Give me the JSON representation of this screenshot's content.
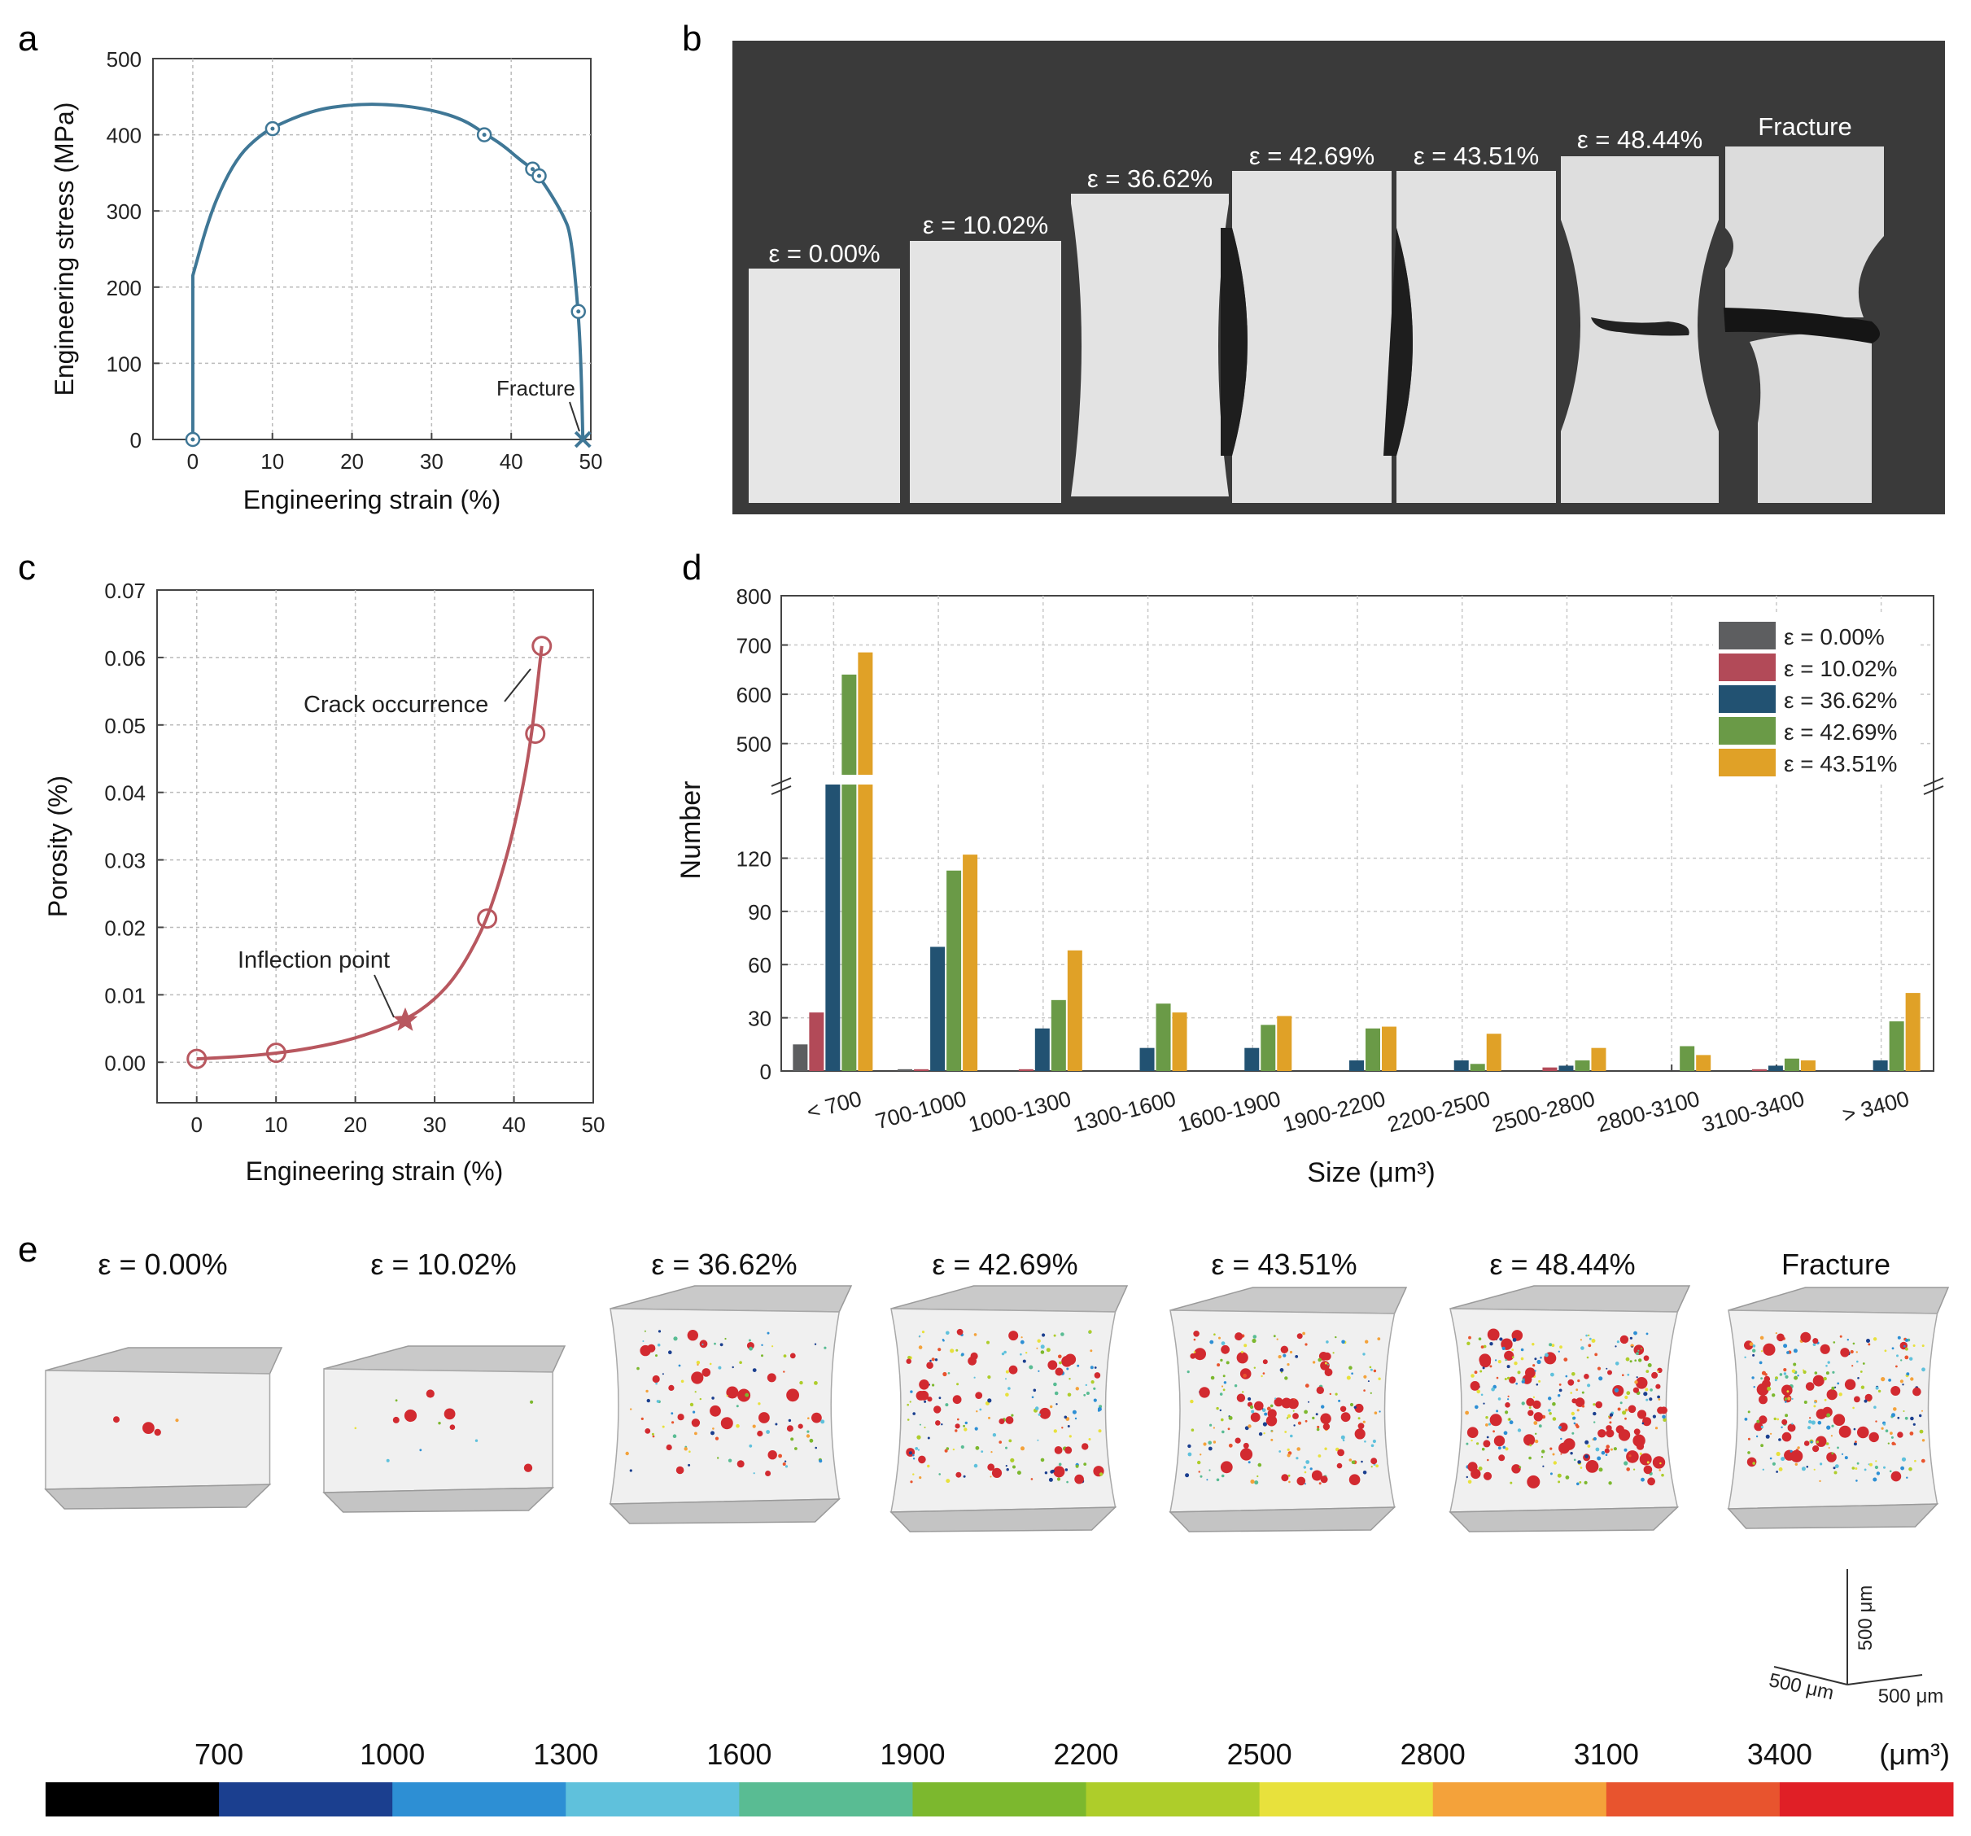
{
  "colors": {
    "stress": "#3f7796",
    "porosity": "#b8575f",
    "series": [
      "#5d5e60",
      "#b24a58",
      "#225272",
      "#6a9a47",
      "#e0a127"
    ],
    "colorbar": [
      "#000000",
      "#1b3f8f",
      "#2d8fd4",
      "#5fc1dc",
      "#59bc93",
      "#7cb82e",
      "#aecd2a",
      "#e8e13c",
      "#f4a23a",
      "#e8542e",
      "#e01f26"
    ]
  },
  "panels": {
    "a": "a",
    "b": "b",
    "c": "c",
    "d": "d",
    "e": "e"
  },
  "panel_b": {
    "labels": [
      "ε = 0.00%",
      "ε = 10.02%",
      "ε = 36.62%",
      "ε = 42.69%",
      "ε = 43.51%",
      "ε = 48.44%",
      "Fracture"
    ]
  },
  "panel_e": {
    "labels": [
      "ε = 0.00%",
      "ε = 10.02%",
      "ε = 36.62%",
      "ε = 42.69%",
      "ε = 43.51%",
      "ε = 48.44%",
      "Fracture"
    ],
    "scale": {
      "vertical": "500 μm",
      "left": "500 μm",
      "right": "500 μm"
    },
    "colorbar": {
      "ticks": [
        "700",
        "1000",
        "1300",
        "1600",
        "1900",
        "2200",
        "2500",
        "2800",
        "3100",
        "3400"
      ],
      "unit": "(μm³)"
    }
  },
  "chart_data": [
    {
      "id": "a",
      "type": "line",
      "xlabel": "Engineering strain (%)",
      "ylabel": "Engineering stress (MPa)",
      "xlim": [
        -5,
        50
      ],
      "ylim": [
        0,
        500
      ],
      "xticks": [
        "0",
        "10",
        "20",
        "30",
        "40",
        "50"
      ],
      "yticks": [
        "0",
        "100",
        "200",
        "300",
        "400",
        "500"
      ],
      "curve": [
        [
          0,
          0
        ],
        [
          0,
          215
        ],
        [
          2,
          290
        ],
        [
          4,
          340
        ],
        [
          6,
          375
        ],
        [
          8,
          395
        ],
        [
          10,
          410
        ],
        [
          15,
          432
        ],
        [
          20,
          440
        ],
        [
          25,
          440
        ],
        [
          30,
          433
        ],
        [
          34,
          420
        ],
        [
          36.62,
          402
        ],
        [
          39,
          386
        ],
        [
          41,
          368
        ],
        [
          42.69,
          355
        ],
        [
          43.51,
          345
        ],
        [
          45,
          322
        ],
        [
          46.5,
          295
        ],
        [
          47.5,
          270
        ],
        [
          48.44,
          168
        ],
        [
          48.8,
          90
        ],
        [
          49,
          0
        ]
      ],
      "markers": [
        [
          0,
          0
        ],
        [
          10.02,
          408
        ],
        [
          36.62,
          400
        ],
        [
          42.69,
          355
        ],
        [
          43.51,
          346
        ],
        [
          48.44,
          168
        ]
      ],
      "fracture_point": [
        49,
        0
      ],
      "annotation": "Fracture"
    },
    {
      "id": "c",
      "type": "scatter",
      "xlabel": "Engineering strain (%)",
      "ylabel": "Porosity (%)",
      "xlim": [
        -5,
        50
      ],
      "ylim": [
        -0.006,
        0.07
      ],
      "xticks": [
        "0",
        "10",
        "20",
        "30",
        "40",
        "50"
      ],
      "yticks": [
        "0.00",
        "0.01",
        "0.02",
        "0.03",
        "0.04",
        "0.05",
        "0.06",
        "0.07"
      ],
      "points": [
        [
          0,
          0.0005
        ],
        [
          10.02,
          0.0014
        ],
        [
          36.62,
          0.0213
        ],
        [
          42.69,
          0.0487
        ],
        [
          43.51,
          0.0617
        ]
      ],
      "fit": [
        [
          0,
          0.0005
        ],
        [
          5,
          0.0008
        ],
        [
          10,
          0.0013
        ],
        [
          15,
          0.0022
        ],
        [
          20,
          0.0035
        ],
        [
          26.3,
          0.0062
        ],
        [
          30,
          0.0092
        ],
        [
          33,
          0.0132
        ],
        [
          36,
          0.0195
        ],
        [
          38,
          0.026
        ],
        [
          40,
          0.0345
        ],
        [
          42,
          0.046
        ],
        [
          43.51,
          0.0617
        ]
      ],
      "inflection": [
        26.3,
        0.0062
      ],
      "annotations": [
        "Crack occurrence",
        "Inflection point"
      ]
    },
    {
      "id": "d",
      "type": "bar",
      "xlabel": "Size (μm³)",
      "ylabel": "Number",
      "categories": [
        "< 700",
        "700-1000",
        "1000-1300",
        "1300-1600",
        "1600-1900",
        "1900-2200",
        "2200-2500",
        "2500-2800",
        "2800-3100",
        "3100-3400",
        "> 3400"
      ],
      "series": [
        {
          "name": "ε = 0.00%",
          "values": [
            15,
            1,
            0,
            0,
            0,
            0,
            0,
            0,
            0,
            0,
            0
          ]
        },
        {
          "name": "ε = 10.02%",
          "values": [
            33,
            1,
            1,
            0,
            0,
            0,
            0,
            2,
            0,
            1,
            0
          ]
        },
        {
          "name": "ε = 36.62%",
          "values": [
            432,
            70,
            24,
            13,
            13,
            6,
            6,
            3,
            0,
            3,
            6
          ]
        },
        {
          "name": "ε = 42.69%",
          "values": [
            640,
            113,
            40,
            38,
            26,
            24,
            4,
            6,
            14,
            7,
            28
          ]
        },
        {
          "name": "ε = 43.51%",
          "values": [
            685,
            122,
            68,
            33,
            31,
            25,
            21,
            13,
            9,
            6,
            44
          ]
        }
      ],
      "lower_yticks": [
        "0",
        "30",
        "60",
        "90",
        "120"
      ],
      "upper_yticks": [
        "500",
        "600",
        "700",
        "800"
      ],
      "ylim_lower": [
        0,
        145
      ],
      "ylim_upper": [
        440,
        800
      ]
    }
  ]
}
